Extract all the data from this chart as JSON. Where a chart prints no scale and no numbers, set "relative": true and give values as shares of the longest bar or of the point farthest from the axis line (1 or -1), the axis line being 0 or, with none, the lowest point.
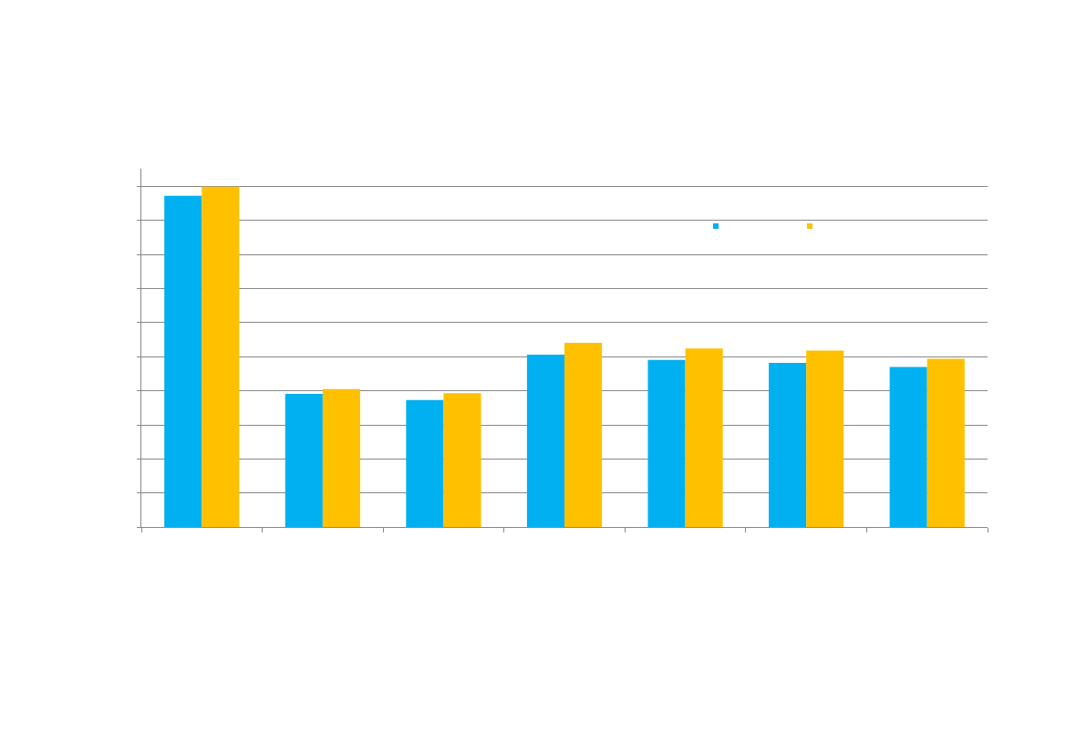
{
  "chart_data": {
    "type": "bar",
    "relative": true,
    "categories": [
      null,
      null,
      null,
      null,
      null,
      null,
      null
    ],
    "series": [
      {
        "color": "#00b0f0",
        "values": [
          0.973,
          0.391,
          0.373,
          0.506,
          0.491,
          0.482,
          0.47
        ]
      },
      {
        "color": "#ffc000",
        "values": [
          1,
          0.405,
          0.393,
          0.541,
          0.524,
          0.518,
          0.494
        ]
      }
    ],
    "grid": "y"
  }
}
